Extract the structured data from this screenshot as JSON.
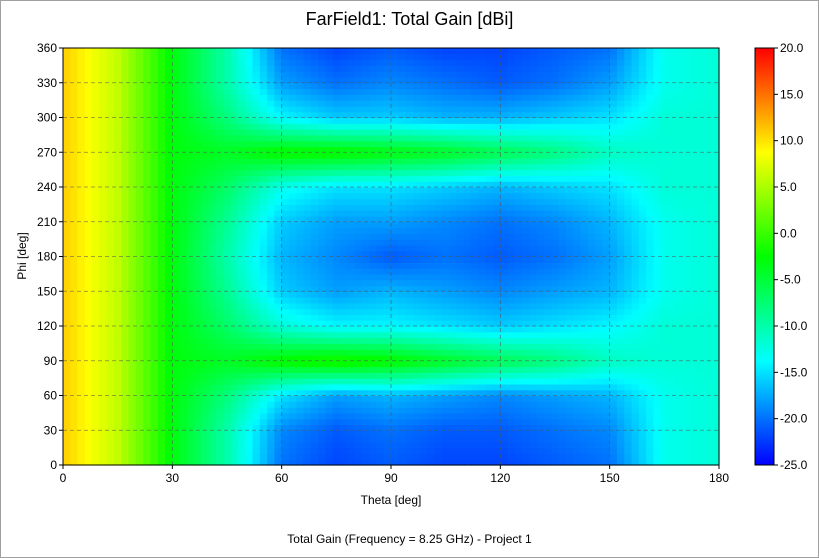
{
  "title": "FarField1: Total Gain [dBi]",
  "caption": "Total Gain (Frequency = 8.25 GHz) - Project 1",
  "chart_data": {
    "type": "heatmap",
    "title": "FarField1: Total Gain [dBi]",
    "xlabel": "Theta [deg]",
    "ylabel": "Phi [deg]",
    "xlim": [
      0,
      180
    ],
    "ylim": [
      0,
      360
    ],
    "xticks": [
      0,
      30,
      60,
      90,
      120,
      150,
      180
    ],
    "yticks": [
      0,
      30,
      60,
      90,
      120,
      150,
      180,
      210,
      240,
      270,
      300,
      330,
      360
    ],
    "grid": true,
    "colorbar": {
      "label": "Total Gain [dBi]",
      "range": [
        -25,
        20
      ],
      "ticks": [
        "20.0",
        "15.0",
        "10.0",
        "5.0",
        "0.0",
        "-5.0",
        "-10.0",
        "-15.0",
        "-20.0",
        "-25.0"
      ],
      "colors": [
        "#0000ff",
        "#00ffff",
        "#00ff00",
        "#ffff00",
        "#ff0000"
      ]
    },
    "x": [
      0,
      15,
      30,
      45,
      60,
      75,
      90,
      105,
      120,
      135,
      150,
      165,
      180
    ],
    "y": [
      0,
      30,
      60,
      90,
      120,
      150,
      180,
      210,
      240,
      270,
      300,
      330,
      360
    ],
    "z": [
      [
        11,
        6,
        -3,
        -10,
        -20,
        -22,
        -21,
        -22,
        -22,
        -21,
        -20,
        -13,
        -12
      ],
      [
        11,
        6,
        -3,
        -10,
        -19,
        -21,
        -20,
        -21,
        -21,
        -20,
        -19,
        -13,
        -12
      ],
      [
        11,
        6,
        -3,
        -8,
        -15,
        -18,
        -17,
        -18,
        -19,
        -18,
        -17,
        -13,
        -12
      ],
      [
        11,
        6,
        -3,
        -4,
        -2,
        -1,
        -2,
        -4,
        -6,
        -8,
        -11,
        -12,
        -12
      ],
      [
        11,
        6,
        -3,
        -7,
        -12,
        -14,
        -14,
        -15,
        -16,
        -15,
        -14,
        -12,
        -12
      ],
      [
        11,
        6,
        -3,
        -9,
        -16,
        -18,
        -17,
        -18,
        -19,
        -18,
        -17,
        -13,
        -12
      ],
      [
        11,
        6,
        -3,
        -10,
        -17,
        -19,
        -21,
        -20,
        -21,
        -20,
        -18,
        -13,
        -12
      ],
      [
        11,
        6,
        -3,
        -9,
        -16,
        -18,
        -18,
        -19,
        -20,
        -19,
        -17,
        -13,
        -12
      ],
      [
        11,
        6,
        -3,
        -7,
        -13,
        -15,
        -15,
        -16,
        -17,
        -16,
        -15,
        -12,
        -12
      ],
      [
        11,
        6,
        -3,
        -4,
        -2,
        -2,
        -3,
        -4,
        -6,
        -8,
        -11,
        -12,
        -12
      ],
      [
        11,
        6,
        -3,
        -8,
        -14,
        -16,
        -16,
        -17,
        -17,
        -16,
        -15,
        -12,
        -12
      ],
      [
        11,
        6,
        -3,
        -10,
        -18,
        -20,
        -19,
        -20,
        -21,
        -20,
        -18,
        -13,
        -12
      ],
      [
        11,
        6,
        -3,
        -10,
        -20,
        -22,
        -21,
        -22,
        -22,
        -21,
        -20,
        -13,
        -12
      ]
    ]
  }
}
